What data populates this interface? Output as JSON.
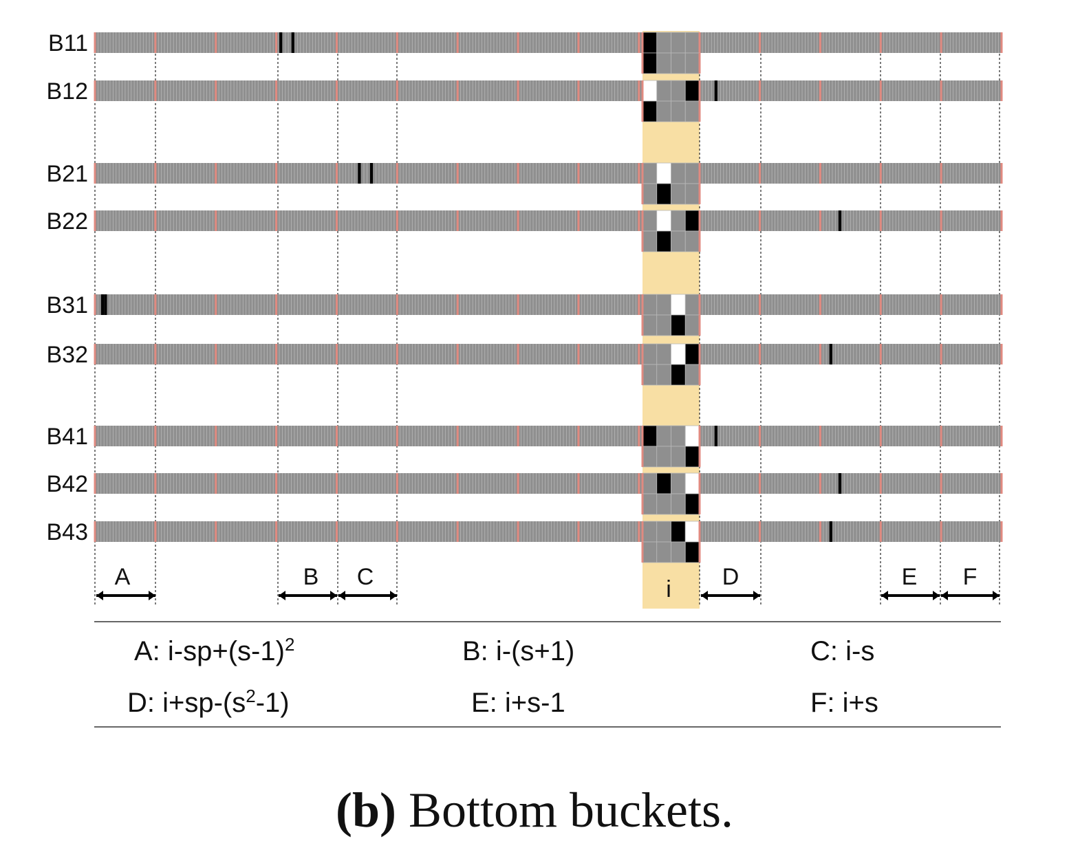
{
  "rows": [
    {
      "label": "B11",
      "black": [
        61,
        65
      ],
      "center_white": [
        0
      ],
      "center_black": [
        0
      ],
      "center_lower_black": [
        0
      ]
    },
    {
      "label": "B12",
      "black": [
        205
      ],
      "center_white": [
        0
      ],
      "center_black": [
        3
      ],
      "center_lower_black": [
        0
      ]
    },
    {
      "label": "B21",
      "black": [
        87,
        91
      ],
      "center_white": [
        1
      ],
      "center_black": [],
      "center_lower_black": [
        1
      ]
    },
    {
      "label": "B22",
      "black": [
        246
      ],
      "center_white": [
        1
      ],
      "center_black": [
        3
      ],
      "center_lower_black": [
        1
      ]
    },
    {
      "label": "B31",
      "black": [
        2,
        3
      ],
      "center_white": [
        2
      ],
      "center_black": [],
      "center_lower_black": [
        2
      ]
    },
    {
      "label": "B32",
      "black": [
        243
      ],
      "center_white": [
        2
      ],
      "center_black": [
        3
      ],
      "center_lower_black": [
        2
      ]
    },
    {
      "label": "B41",
      "black": [
        205
      ],
      "center_white": [
        3
      ],
      "center_black": [
        0
      ],
      "center_lower_black": [
        3
      ]
    },
    {
      "label": "B42",
      "black": [
        246
      ],
      "center_white": [
        3
      ],
      "center_black": [
        1
      ],
      "center_lower_black": [
        3
      ]
    },
    {
      "label": "B43",
      "black": [
        243
      ],
      "center_white": [
        3
      ],
      "center_black": [
        2
      ],
      "center_lower_black": [
        3
      ]
    }
  ],
  "ranges": [
    {
      "key": "A",
      "label": "A"
    },
    {
      "key": "B",
      "label": "B"
    },
    {
      "key": "C",
      "label": "C"
    },
    {
      "key": "i",
      "label": "i"
    },
    {
      "key": "D",
      "label": "D"
    },
    {
      "key": "E",
      "label": "E"
    },
    {
      "key": "F",
      "label": "F"
    }
  ],
  "legend": [
    {
      "label": "A: i-sp+(s-1)",
      "sup": "2",
      "tail": ""
    },
    {
      "label": "B: i-(s+1)",
      "sup": "",
      "tail": ""
    },
    {
      "label": "C: i-s",
      "sup": "",
      "tail": ""
    },
    {
      "label": "D: i+sp-(s",
      "sup": "2",
      "tail": "-1)"
    },
    {
      "label": "E: i+s-1",
      "sup": "",
      "tail": ""
    },
    {
      "label": "F: i+s",
      "sup": "",
      "tail": ""
    }
  ],
  "caption": {
    "tag": "(b)",
    "text": " Bottom buckets."
  },
  "colors": {
    "cell": "#8f8f8f",
    "cell_border": "#b8b8b8",
    "separator": "#e08a80",
    "black": "#000000",
    "white": "#ffffff",
    "highlight": "#f8dfa4"
  }
}
